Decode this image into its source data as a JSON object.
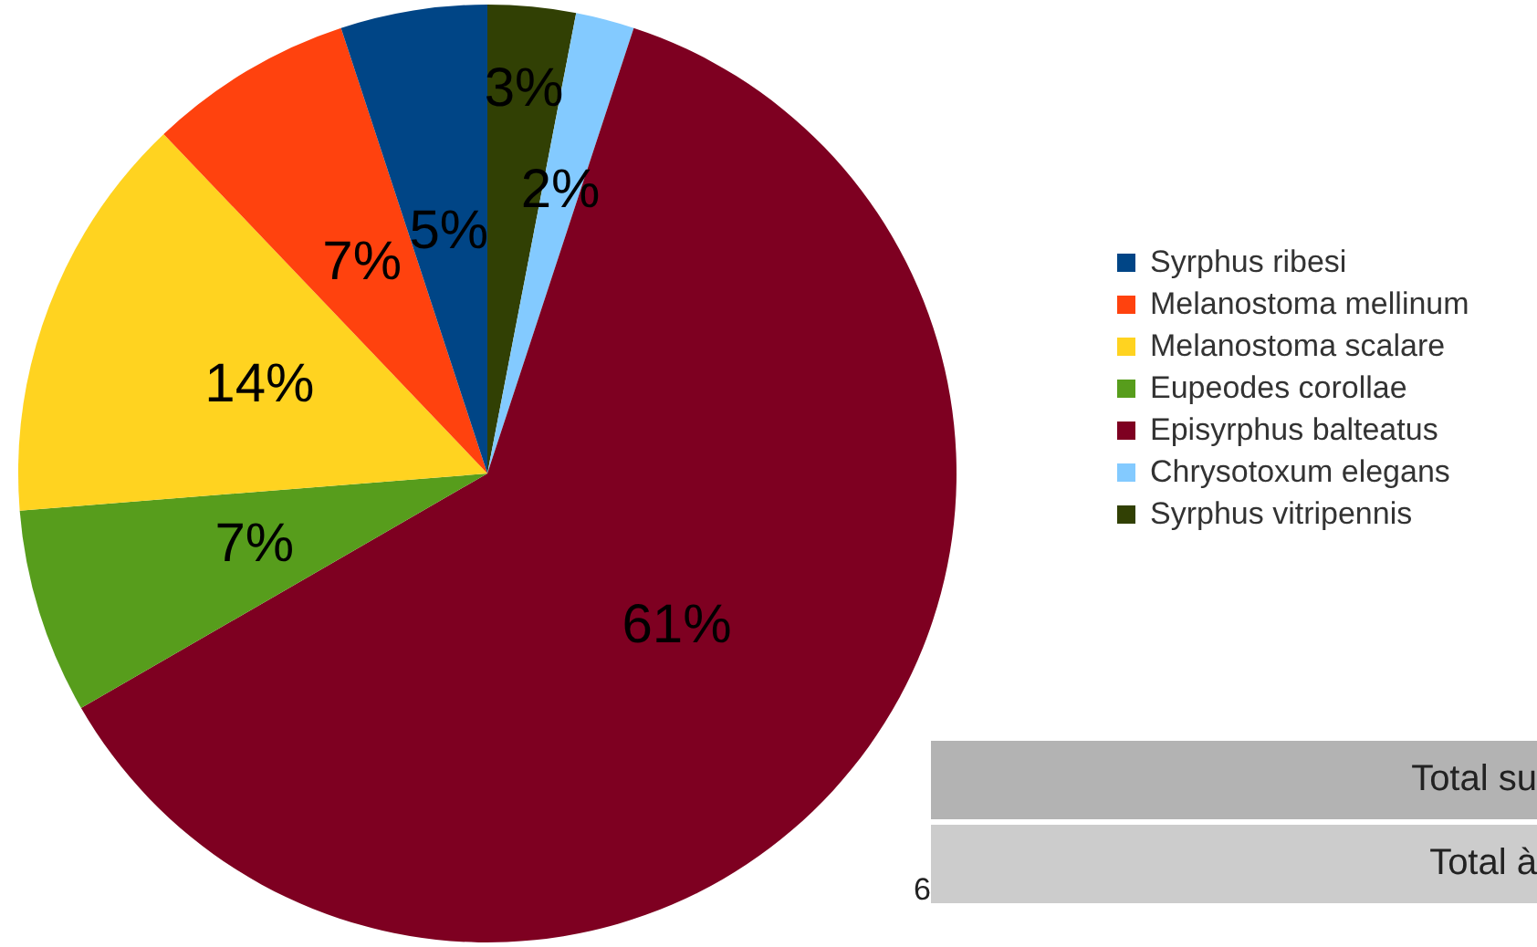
{
  "chart_data": {
    "type": "pie",
    "categories": [
      "Syrphus ribesi",
      "Melanostoma mellinum",
      "Melanostoma scalare",
      "Eupeodes corollae",
      "Episyrphus balteatus",
      "Chrysotoxum elegans",
      "Syrphus vitripennis"
    ],
    "values": [
      5,
      7,
      14,
      7,
      61,
      2,
      3
    ],
    "value_labels": [
      "5%",
      "7%",
      "14%",
      "7%",
      "61%",
      "2%",
      "3%"
    ],
    "colors": [
      "#004586",
      "#ff420e",
      "#ffd320",
      "#579d1c",
      "#7e0021",
      "#83caff",
      "#314004"
    ],
    "legend": "right",
    "annotations": [
      "Total su",
      "Total à",
      "6"
    ]
  }
}
